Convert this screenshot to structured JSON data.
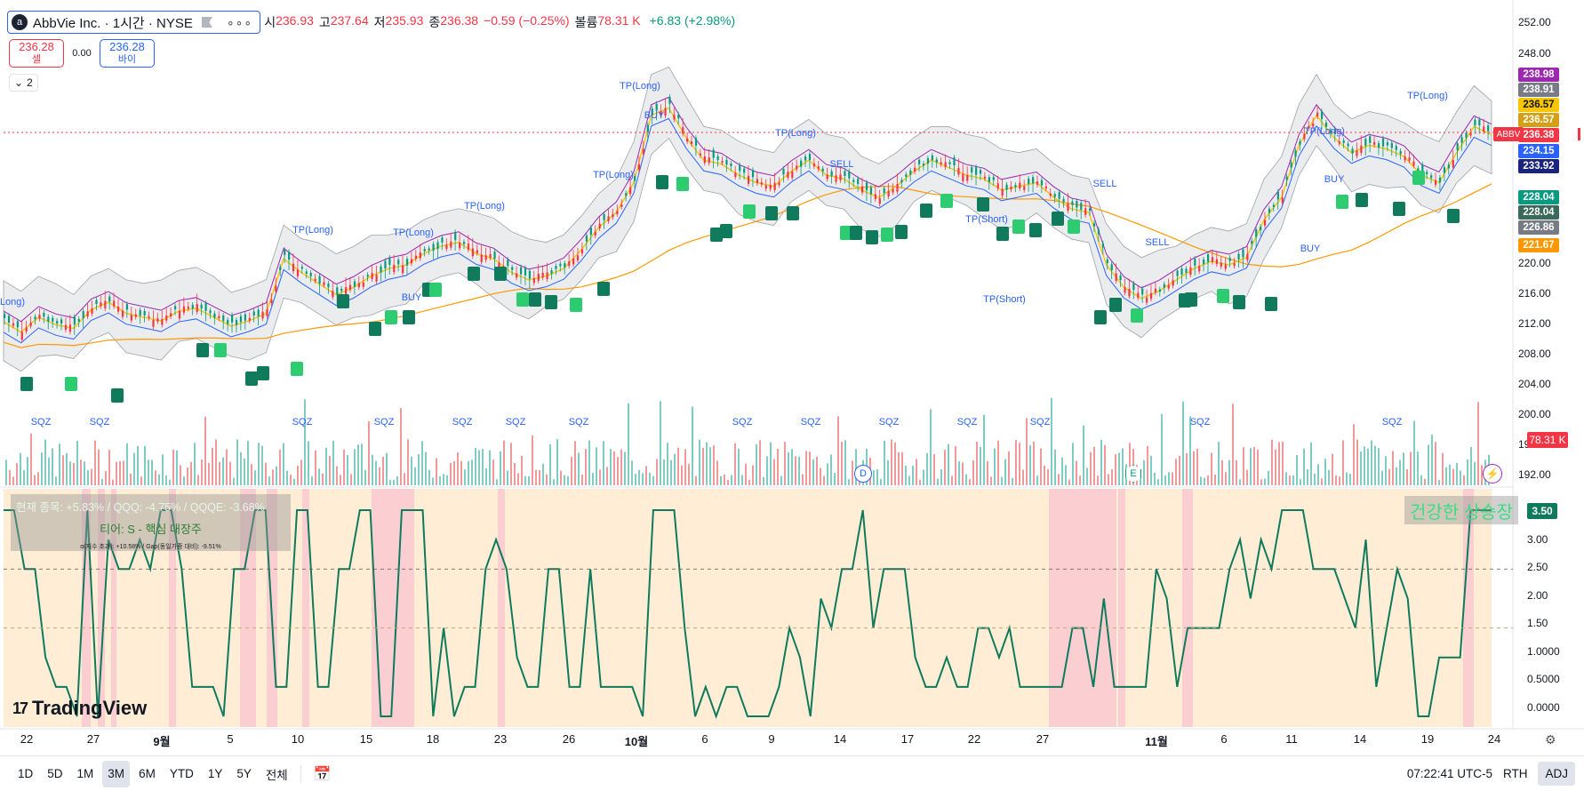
{
  "header": {
    "logo_icon": "abbvie-logo-icon",
    "symbol_title": "AbbVie Inc. · 1시간 · NYSE",
    "more": "∘∘∘",
    "open_label": "시",
    "open": "236.93",
    "high_label": "고",
    "high": "237.64",
    "low_label": "저",
    "low": "235.93",
    "close_label": "종",
    "close": "236.38",
    "change": "−0.59 (−0.25%)",
    "vol_label": "볼륨",
    "vol": "78.31 K",
    "vol_change": "+6.83 (+2.98%)"
  },
  "trade": {
    "sell_price": "236.28",
    "sell_label": "셀",
    "spread": "0.00",
    "buy_price": "236.28",
    "buy_label": "바이"
  },
  "indicators_toggle": "2",
  "price_axis": {
    "ticks": [
      "252.00",
      "248.00",
      "220.00",
      "216.00",
      "212.00",
      "208.00",
      "204.00",
      "200.00",
      "196.00",
      "192.00"
    ],
    "tags": [
      {
        "value": "238.98",
        "color": "#9c27b0"
      },
      {
        "value": "238.91",
        "color": "#787b86"
      },
      {
        "value": "236.57",
        "color": "#f7c600",
        "text": "#131722"
      },
      {
        "value": "236.57",
        "color": "#d4a017"
      },
      {
        "value": "236.38",
        "color": "#f23645"
      },
      {
        "value": "234.15",
        "color": "#2962ff"
      },
      {
        "value": "233.92",
        "color": "#1a237e"
      },
      {
        "value": "228.04",
        "color": "#089981"
      },
      {
        "value": "228.04",
        "color": "#3a6b5a"
      },
      {
        "value": "226.86",
        "color": "#787b86"
      },
      {
        "value": "221.67",
        "color": "#ff9800"
      }
    ],
    "symbol_tag": "ABBV",
    "volume_tag": "78.31 K"
  },
  "oscillator": {
    "ticks": [
      "3.00",
      "2.50",
      "2.00",
      "1.50",
      "1.0000",
      "0.5000",
      "0.0000"
    ],
    "last": "3.50",
    "values": [
      3.5,
      3.5,
      2.5,
      2.5,
      1.0,
      0.5,
      0.5,
      0.0,
      3.5,
      0.0,
      3.0,
      2.5,
      2.5,
      3.0,
      2.5,
      3.5,
      3.5,
      2.5,
      0.5,
      0.5,
      0.5,
      0.0,
      2.5,
      2.5,
      3.5,
      3.5,
      0.5,
      0.5,
      3.5,
      3.5,
      0.5,
      0.5,
      2.5,
      2.5,
      3.5,
      3.5,
      0.0,
      0.0,
      3.5,
      3.5,
      3.5,
      0.0,
      1.5,
      0.0,
      0.5,
      0.5,
      2.5,
      3.0,
      2.5,
      1.0,
      0.5,
      0.5,
      2.5,
      2.5,
      0.5,
      0.5,
      2.5,
      0.5,
      0.5,
      0.5,
      0.5,
      0.0,
      3.5,
      3.5,
      3.5,
      1.5,
      0.0,
      0.5,
      0.0,
      0.5,
      0.5,
      0.0,
      0.0,
      0.0,
      0.5,
      1.5,
      1.0,
      0.0,
      2.0,
      1.5,
      2.5,
      2.5,
      3.5,
      1.5,
      2.5,
      2.5,
      2.5,
      1.0,
      0.5,
      0.5,
      1.0,
      0.5,
      0.5,
      1.5,
      1.5,
      1.0,
      1.5,
      0.5,
      0.5,
      0.5,
      0.5,
      0.5,
      1.5,
      1.5,
      0.5,
      2.0,
      0.5,
      0.5,
      0.5,
      0.5,
      2.5,
      2.0,
      0.5,
      1.5,
      1.5,
      1.5,
      1.5,
      2.5,
      3.0,
      2.0,
      3.0,
      2.5,
      3.5,
      3.5,
      3.5,
      2.5,
      2.5,
      2.5,
      2.0,
      1.5,
      3.0,
      0.5,
      1.5,
      2.5,
      2.0,
      0.0,
      0.0,
      1.0,
      1.0,
      1.0,
      3.5,
      3.5,
      3.5
    ],
    "health_label": "건강한 상승장",
    "panel_line1": "현재 종목: +5.83% / QQQ: -4.75% / QQQE: -3.68%",
    "panel_line2": "티어: S - 핵심 대장주",
    "panel_line3": "α(지수 초과): +10.58% / Gap(동일가중 대비): -9.51%"
  },
  "events": {
    "dividend": "D",
    "earnings": "E",
    "alert_icon": "bolt-icon"
  },
  "time_axis": [
    {
      "label": "22"
    },
    {
      "label": "27"
    },
    {
      "label": "9월",
      "bold": true
    },
    {
      "label": "5"
    },
    {
      "label": "10"
    },
    {
      "label": "15"
    },
    {
      "label": "18"
    },
    {
      "label": "23"
    },
    {
      "label": "26"
    },
    {
      "label": "10월",
      "bold": true
    },
    {
      "label": "6"
    },
    {
      "label": "9"
    },
    {
      "label": "14"
    },
    {
      "label": "17"
    },
    {
      "label": "22"
    },
    {
      "label": "27"
    },
    {
      "label": "11월",
      "bold": true
    },
    {
      "label": "6"
    },
    {
      "label": "11"
    },
    {
      "label": "14"
    },
    {
      "label": "19"
    },
    {
      "label": "24"
    }
  ],
  "toolbar": {
    "timeframes": [
      "1D",
      "5D",
      "1M",
      "3M",
      "6M",
      "YTD",
      "1Y",
      "5Y",
      "전체"
    ],
    "active": "3M",
    "clock": "07:22:41 UTC-5",
    "session": "RTH",
    "adj": "ADJ"
  },
  "brand": "TradingView",
  "chart_data": {
    "type": "candlestick",
    "title": "AbbVie Inc. · 1시간 · NYSE",
    "price_range": [
      190,
      253
    ],
    "close_path": [
      211.4,
      210.0,
      212.0,
      211.0,
      210.5,
      213.0,
      214.0,
      212.5,
      212.0,
      211.5,
      212.8,
      213.2,
      212.0,
      210.8,
      211.5,
      212.5,
      219.8,
      218.0,
      216.5,
      215.0,
      216.0,
      217.5,
      218.5,
      219.0,
      220.5,
      221.5,
      222.0,
      220.5,
      219.8,
      218.0,
      217.0,
      217.5,
      218.5,
      221.0,
      224.0,
      226.0,
      230.0,
      239.0,
      240.0,
      236.0,
      233.0,
      232.5,
      231.0,
      230.0,
      229.5,
      231.5,
      233.0,
      231.0,
      230.5,
      229.0,
      228.0,
      229.5,
      231.5,
      233.0,
      232.0,
      231.0,
      230.5,
      229.0,
      229.5,
      230.0,
      228.0,
      226.5,
      226.0,
      219.0,
      216.0,
      214.5,
      215.5,
      217.0,
      218.5,
      219.5,
      219.0,
      220.0,
      225.0,
      228.0,
      235.0,
      239.0,
      236.0,
      234.0,
      235.0,
      234.5,
      233.5,
      231.0,
      230.0,
      234.0,
      237.5,
      236.4
    ],
    "markers": [
      "TP(Long)",
      "TP(Short)",
      "BUY",
      "SELL",
      "SQZ",
      "L",
      "L2"
    ]
  }
}
